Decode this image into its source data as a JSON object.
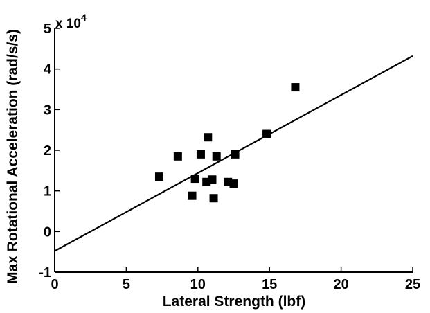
{
  "chart_data": {
    "type": "scatter",
    "xlabel": "Lateral Strength (lbf)",
    "ylabel": "Max Rotational Acceleration (rad/s/s)",
    "y_multiplier_label": "x 10",
    "y_multiplier_exponent": "4",
    "xlim": [
      0,
      25
    ],
    "ylim": [
      -1,
      5
    ],
    "x_ticks": [
      0,
      5,
      10,
      15,
      20,
      25
    ],
    "x_tick_labels": [
      "0",
      "5",
      "10",
      "15",
      "20",
      "25"
    ],
    "y_ticks": [
      -1,
      0,
      1,
      2,
      3,
      4,
      5
    ],
    "y_tick_labels": [
      "-1",
      "0",
      "1",
      "2",
      "3",
      "4",
      "5"
    ],
    "grid": false,
    "points": [
      {
        "x": 7.3,
        "y": 1.35
      },
      {
        "x": 8.6,
        "y": 1.85
      },
      {
        "x": 9.6,
        "y": 0.88
      },
      {
        "x": 9.8,
        "y": 1.3
      },
      {
        "x": 10.2,
        "y": 1.9
      },
      {
        "x": 10.6,
        "y": 1.22
      },
      {
        "x": 10.7,
        "y": 2.32
      },
      {
        "x": 11.0,
        "y": 1.28
      },
      {
        "x": 11.1,
        "y": 0.82
      },
      {
        "x": 11.3,
        "y": 1.85
      },
      {
        "x": 12.1,
        "y": 1.22
      },
      {
        "x": 12.5,
        "y": 1.18
      },
      {
        "x": 12.6,
        "y": 1.9
      },
      {
        "x": 14.8,
        "y": 2.4
      },
      {
        "x": 16.8,
        "y": 3.55
      }
    ],
    "fit_line": {
      "x0": 0,
      "y0": -0.48,
      "x1": 25,
      "y1": 4.32
    },
    "marker_color": "#000000",
    "line_color": "#000000"
  }
}
